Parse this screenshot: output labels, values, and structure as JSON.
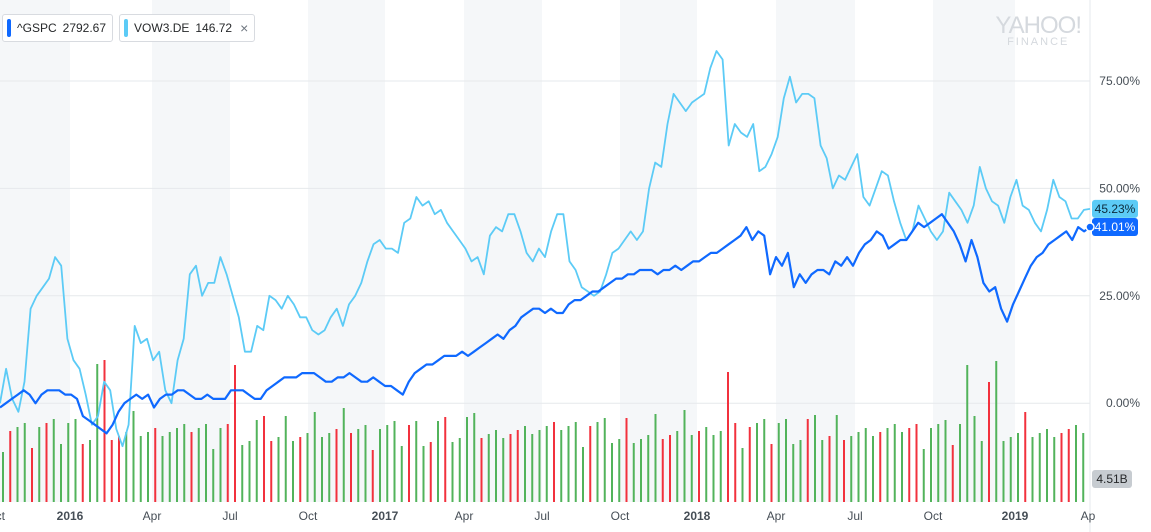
{
  "legend": {
    "items": [
      {
        "symbol": "^GSPC",
        "value": "2792.67",
        "color": "#0f69ff"
      },
      {
        "symbol": "VOW3.DE",
        "value": "146.72",
        "color": "#5ccbf6",
        "close": "×"
      }
    ]
  },
  "watermark": {
    "line1": "YAHOO!",
    "line2": "FINANCE"
  },
  "chart_data": {
    "type": "line",
    "title": "",
    "xlabel": "",
    "ylabel": "",
    "x_ticks": [
      "ct",
      "2016",
      "Apr",
      "Jul",
      "Oct",
      "2017",
      "Apr",
      "Jul",
      "Oct",
      "2018",
      "Apr",
      "Jul",
      "Oct",
      "2019",
      "Ap"
    ],
    "y_ticks": [
      "0.00%",
      "25.00%",
      "50.00%",
      "75.00%"
    ],
    "ylim": [
      -23,
      92
    ],
    "grid": true,
    "series": [
      {
        "name": "^GSPC",
        "color": "#0f69ff",
        "last_label": "41.01%",
        "values": [
          -1,
          0,
          1,
          2,
          3,
          2,
          0,
          2,
          3,
          3,
          3,
          2,
          2,
          1,
          -3,
          -4,
          -5,
          -6,
          -7,
          -5,
          -2,
          0,
          1,
          2,
          1,
          2,
          -1,
          1,
          2,
          2,
          3,
          3,
          2,
          1,
          1,
          2,
          1,
          1,
          1,
          3,
          3,
          3,
          2,
          1,
          1,
          3,
          4,
          5,
          6,
          6,
          6,
          7,
          7,
          7,
          6,
          5,
          5,
          6,
          6,
          7,
          6,
          5,
          5,
          6,
          5,
          4,
          4,
          3,
          2,
          5,
          7,
          8,
          9,
          9,
          10,
          11,
          11,
          11,
          12,
          11,
          12,
          13,
          14,
          15,
          16,
          15,
          17,
          18,
          20,
          21,
          22,
          22,
          21,
          22,
          21,
          21,
          23,
          24,
          24,
          25,
          26,
          26,
          27,
          28,
          29,
          29,
          30,
          30,
          31,
          31,
          31,
          30,
          31,
          31,
          32,
          31,
          32,
          33,
          33,
          34,
          35,
          35,
          36,
          37,
          38,
          39,
          41,
          38,
          40,
          39,
          30,
          34,
          32,
          35,
          27,
          30,
          28,
          30,
          31,
          31,
          30,
          33,
          32,
          34,
          32,
          35,
          37,
          38,
          40,
          39,
          36,
          37,
          38,
          38,
          40,
          42,
          41,
          42,
          43,
          44,
          42,
          40,
          37,
          33,
          38,
          34,
          28,
          26,
          27,
          22,
          19,
          23,
          26,
          29,
          32,
          34,
          35,
          37,
          38,
          39,
          40,
          38,
          41,
          40,
          41.01
        ]
      },
      {
        "name": "VOW3.DE",
        "color": "#5ccbf6",
        "last_label": "45.23%",
        "values": [
          0,
          8,
          1,
          -2,
          5,
          22,
          25,
          27,
          29,
          34,
          32,
          15,
          10,
          8,
          2,
          -5,
          -3,
          5,
          3,
          -6,
          -10,
          -5,
          18,
          14,
          15,
          10,
          12,
          3,
          0,
          10,
          15,
          30,
          32,
          25,
          28,
          28,
          34,
          30,
          25,
          20,
          12,
          12,
          18,
          17,
          25,
          24,
          22,
          25,
          23,
          20,
          20,
          17,
          16,
          17,
          20,
          22,
          18,
          23,
          25,
          28,
          33,
          37,
          38,
          36,
          36,
          35,
          42,
          43,
          48,
          46,
          47,
          44,
          45,
          42,
          40,
          38,
          36,
          33,
          34,
          30,
          39,
          41,
          40,
          44,
          44,
          40,
          35,
          33,
          36,
          34,
          40,
          44,
          44,
          33,
          31,
          27,
          26,
          25,
          26,
          30,
          35,
          36,
          38,
          40,
          38,
          40,
          50,
          56,
          55,
          65,
          72,
          70,
          68,
          70,
          71,
          72,
          78,
          82,
          80,
          60,
          65,
          63,
          62,
          65,
          54,
          55,
          58,
          62,
          71,
          76,
          70,
          72,
          72,
          71,
          60,
          57,
          50,
          53,
          52,
          55,
          58,
          48,
          46,
          50,
          54,
          53,
          47,
          42,
          38,
          40,
          46,
          43,
          40,
          38,
          40,
          49,
          47,
          45,
          42,
          46,
          55,
          50,
          47,
          46,
          42,
          48,
          52,
          46,
          45,
          42,
          40,
          45,
          52,
          48,
          47,
          43,
          43,
          45,
          45.23
        ]
      }
    ],
    "volume": {
      "label": "4.51B",
      "colors": {
        "up": "#52b35b",
        "down": "#f2313d"
      }
    }
  }
}
